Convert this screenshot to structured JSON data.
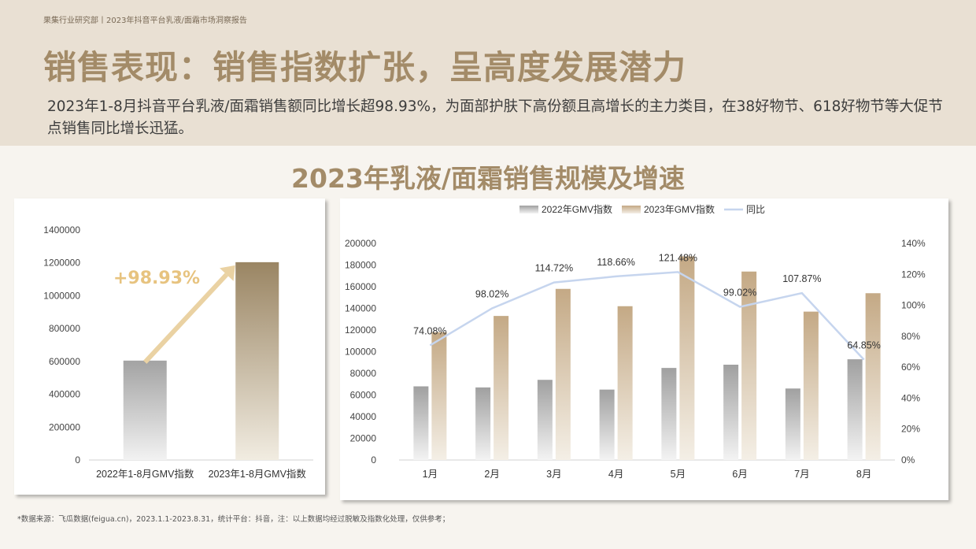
{
  "header": {
    "breadcrumb": "果集行业研究部丨2023年抖音平台乳液/面霜市场洞察报告",
    "title": "销售表现：销售指数扩张，呈高度发展潜力",
    "subtitle": "2023年1-8月抖音平台乳液/面霜销售额同比增长超98.93%，为面部护肤下高份额且高增长的主力类目，在38好物节、618好物节等大促节点销售同比增长迅猛。"
  },
  "section_title": "2023年乳液/面霜销售规模及增速",
  "footnote": "*数据来源：飞瓜数据(feigua.cn)，2023.1.1-2023.8.31，统计平台：抖音，注：以上数据均经过脱敏及指数化处理，仅供参考；",
  "colors": {
    "accent": "#a38b68",
    "gray_bar": "#a6a6a6",
    "tan_bar": "#c7ad8a",
    "line": "#c6d5ee",
    "arrow": "#ead2a3"
  },
  "chart_data": [
    {
      "type": "bar",
      "categories": [
        "2022年1-8月GMV指数",
        "2023年1-8月GMV指数"
      ],
      "values": [
        605000,
        1204000
      ],
      "ylim": [
        0,
        1400000
      ],
      "yticks": [
        "0",
        "200000",
        "400000",
        "600000",
        "800000",
        "1000000",
        "1200000",
        "1400000"
      ],
      "annotation": "+98.93%",
      "grid": false
    },
    {
      "type": "bar",
      "categories": [
        "1月",
        "2月",
        "3月",
        "4月",
        "5月",
        "6月",
        "7月",
        "8月"
      ],
      "series": [
        {
          "name": "2022年GMV指数",
          "type": "bar",
          "values": [
            68000,
            67000,
            74000,
            65000,
            85000,
            88000,
            66000,
            93000
          ]
        },
        {
          "name": "2023年GMV指数",
          "type": "bar",
          "values": [
            118000,
            133000,
            158000,
            142000,
            188000,
            174000,
            137000,
            154000
          ]
        },
        {
          "name": "同比",
          "type": "line",
          "axis": "right",
          "values": [
            74.08,
            98.02,
            114.72,
            118.66,
            121.48,
            99.02,
            107.87,
            64.85
          ],
          "labels": [
            "74.08%",
            "98.02%",
            "114.72%",
            "118.66%",
            "121.48%",
            "99.02%",
            "107.87%",
            "64.85%"
          ]
        }
      ],
      "ylim": [
        0,
        200000
      ],
      "yticks": [
        "0",
        "20000",
        "40000",
        "60000",
        "80000",
        "100000",
        "120000",
        "140000",
        "160000",
        "180000",
        "200000"
      ],
      "y2lim": [
        0,
        140
      ],
      "y2ticks": [
        "0%",
        "20%",
        "40%",
        "60%",
        "80%",
        "100%",
        "120%",
        "140%"
      ],
      "legend": "top",
      "grid": false
    }
  ]
}
